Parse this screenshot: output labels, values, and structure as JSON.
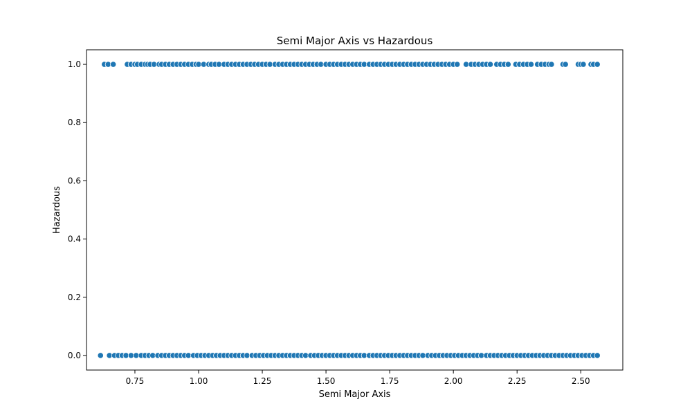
{
  "chart_data": {
    "type": "scatter",
    "title": "Semi Major Axis vs Hazardous",
    "xlabel": "Semi Major Axis",
    "ylabel": "Hazardous",
    "xlim": [
      0.56,
      2.665
    ],
    "ylim": [
      -0.05,
      1.05
    ],
    "xticks": [
      0.75,
      1.0,
      1.25,
      1.5,
      1.75,
      2.0,
      2.25,
      2.5
    ],
    "xtick_labels": [
      "0.75",
      "1.00",
      "1.25",
      "1.50",
      "1.75",
      "2.00",
      "2.25",
      "2.50"
    ],
    "yticks": [
      0.0,
      0.2,
      0.4,
      0.6,
      0.8,
      1.0
    ],
    "ytick_labels": [
      "0.0",
      "0.2",
      "0.4",
      "0.6",
      "0.8",
      "1.0"
    ],
    "grid": false,
    "marker_color": "#1f77b4",
    "marker_edge_color": "#ffffff",
    "series": [
      {
        "y": 1,
        "x": [
          0.63,
          0.645,
          0.665,
          0.72,
          0.735,
          0.75,
          0.76,
          0.775,
          0.79,
          0.8,
          0.81,
          0.825,
          0.845,
          0.855,
          0.87,
          0.885,
          0.9,
          0.915,
          0.93,
          0.945,
          0.96,
          0.975,
          0.99,
          1.0,
          1.02,
          1.04,
          1.05,
          1.065,
          1.08,
          1.1,
          1.115,
          1.13,
          1.145,
          1.16,
          1.175,
          1.19,
          1.205,
          1.22,
          1.235,
          1.25,
          1.265,
          1.28,
          1.3,
          1.315,
          1.33,
          1.345,
          1.36,
          1.375,
          1.39,
          1.405,
          1.42,
          1.435,
          1.45,
          1.465,
          1.48,
          1.5,
          1.515,
          1.53,
          1.545,
          1.56,
          1.575,
          1.59,
          1.605,
          1.62,
          1.635,
          1.65,
          1.67,
          1.685,
          1.7,
          1.715,
          1.73,
          1.745,
          1.76,
          1.775,
          1.79,
          1.805,
          1.82,
          1.835,
          1.85,
          1.865,
          1.88,
          1.895,
          1.91,
          1.925,
          1.94,
          1.955,
          1.97,
          1.985,
          2.0,
          2.015,
          2.05,
          2.07,
          2.085,
          2.1,
          2.115,
          2.13,
          2.145,
          2.17,
          2.185,
          2.2,
          2.215,
          2.245,
          2.26,
          2.275,
          2.29,
          2.305,
          2.33,
          2.345,
          2.36,
          2.375,
          2.385,
          2.43,
          2.44,
          2.49,
          2.5,
          2.51,
          2.54,
          2.55,
          2.565
        ]
      },
      {
        "y": 0,
        "x": [
          0.615,
          0.65,
          0.67,
          0.685,
          0.7,
          0.715,
          0.735,
          0.755,
          0.775,
          0.79,
          0.805,
          0.82,
          0.84,
          0.855,
          0.87,
          0.885,
          0.9,
          0.915,
          0.93,
          0.945,
          0.96,
          0.98,
          0.995,
          1.01,
          1.025,
          1.04,
          1.055,
          1.07,
          1.085,
          1.1,
          1.115,
          1.13,
          1.145,
          1.16,
          1.175,
          1.19,
          1.21,
          1.225,
          1.24,
          1.255,
          1.27,
          1.285,
          1.3,
          1.315,
          1.33,
          1.345,
          1.36,
          1.375,
          1.39,
          1.405,
          1.42,
          1.44,
          1.455,
          1.47,
          1.485,
          1.5,
          1.515,
          1.53,
          1.545,
          1.56,
          1.575,
          1.59,
          1.605,
          1.62,
          1.635,
          1.65,
          1.67,
          1.685,
          1.7,
          1.715,
          1.73,
          1.745,
          1.76,
          1.775,
          1.79,
          1.805,
          1.82,
          1.835,
          1.85,
          1.865,
          1.88,
          1.9,
          1.915,
          1.93,
          1.945,
          1.96,
          1.975,
          1.99,
          2.005,
          2.02,
          2.035,
          2.05,
          2.065,
          2.08,
          2.095,
          2.11,
          2.13,
          2.145,
          2.16,
          2.175,
          2.19,
          2.205,
          2.22,
          2.235,
          2.25,
          2.265,
          2.28,
          2.295,
          2.31,
          2.325,
          2.34,
          2.355,
          2.37,
          2.385,
          2.4,
          2.415,
          2.43,
          2.445,
          2.46,
          2.475,
          2.49,
          2.505,
          2.52,
          2.535,
          2.55,
          2.565
        ]
      }
    ]
  }
}
